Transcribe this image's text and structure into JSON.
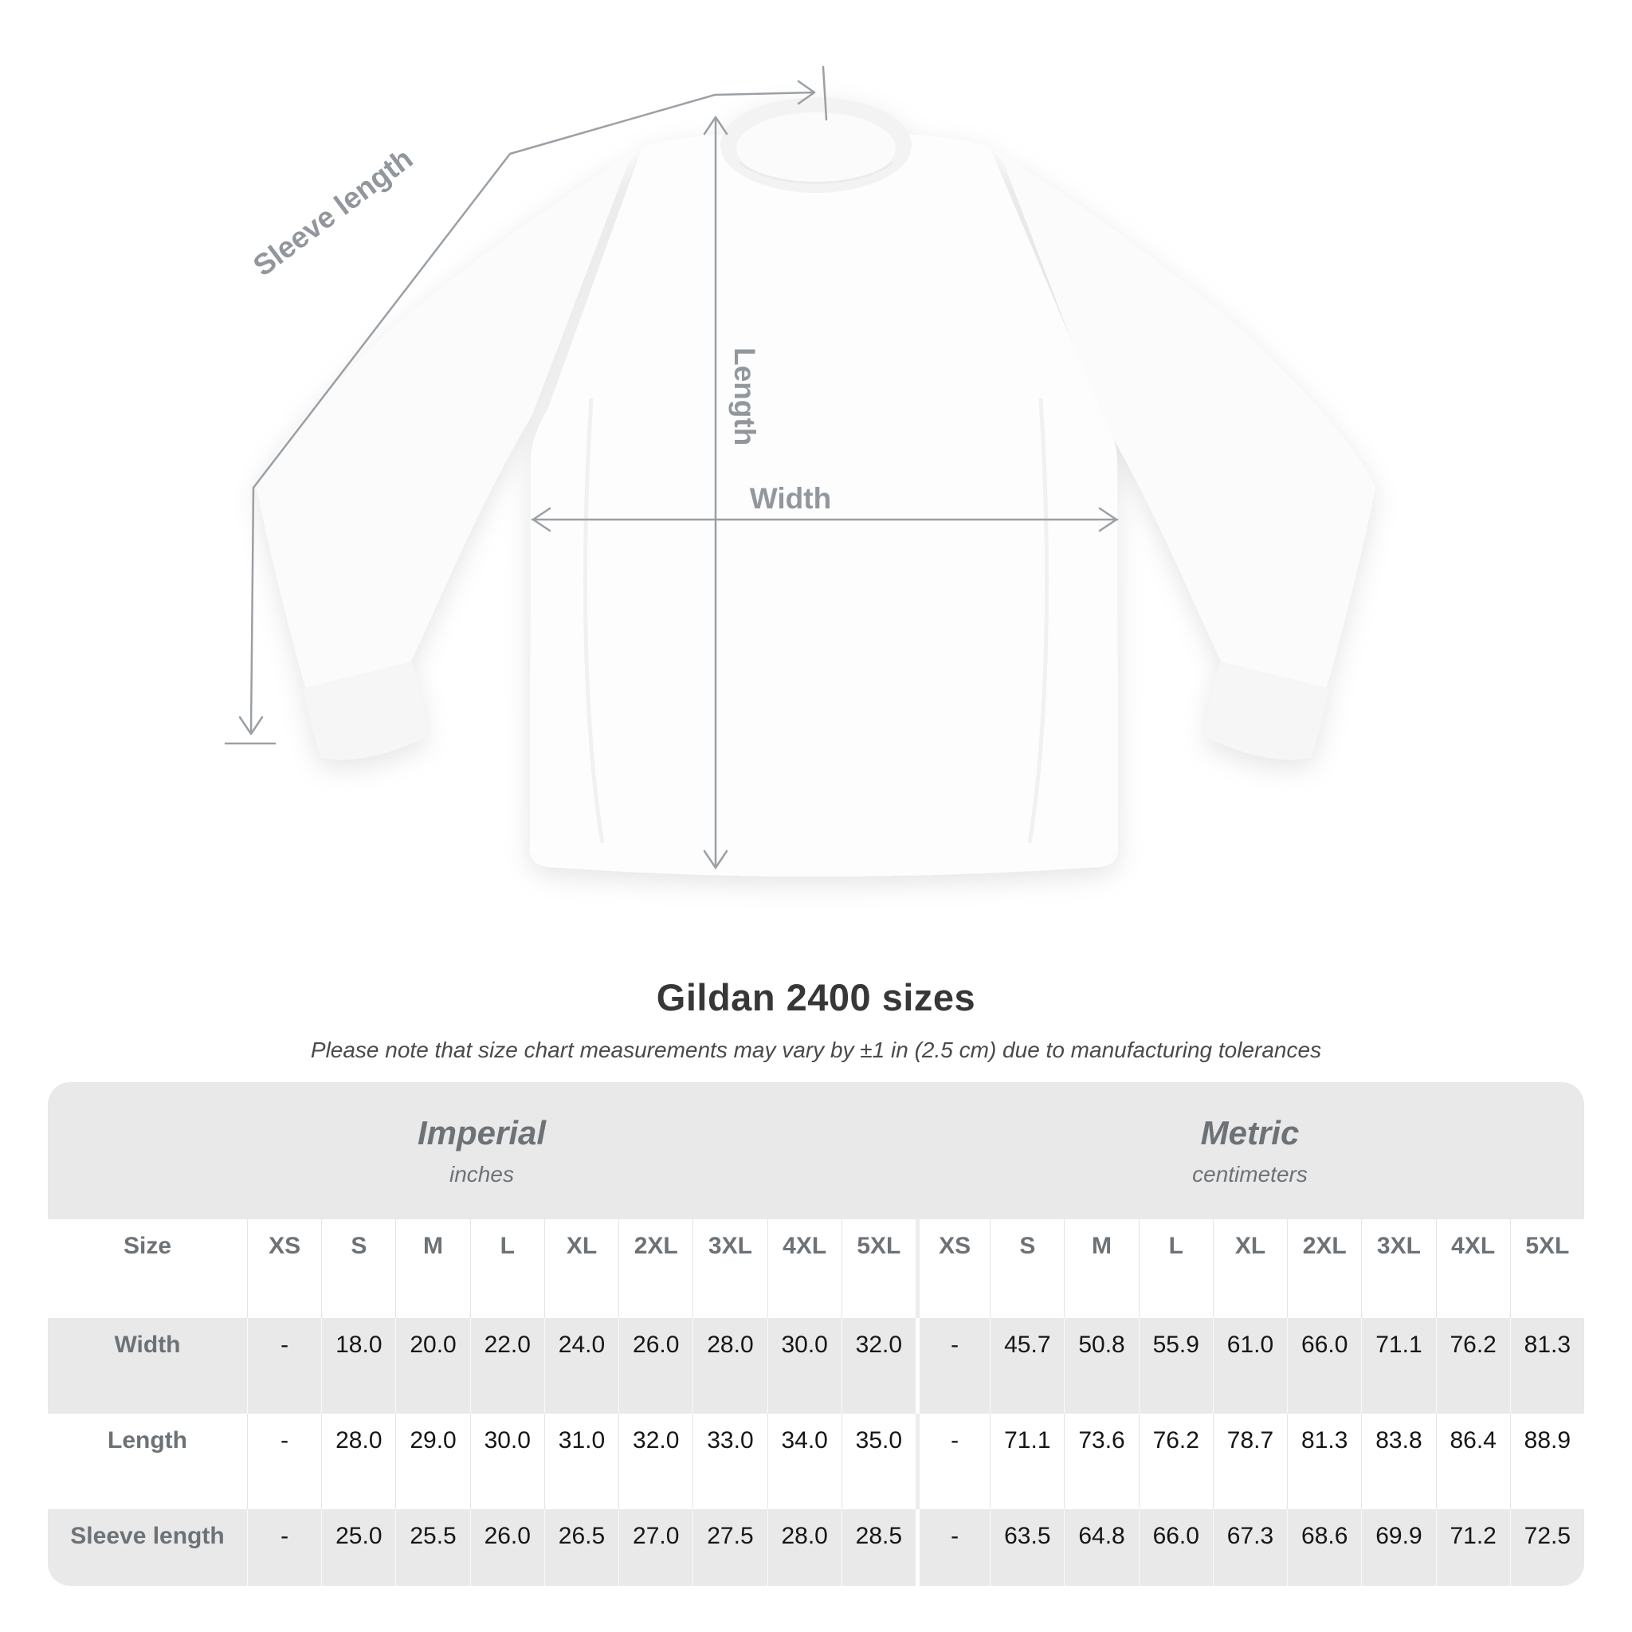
{
  "diagram": {
    "labels": {
      "sleeve_length": "Sleeve length",
      "length": "Length",
      "width": "Width"
    }
  },
  "title": "Gildan 2400 sizes",
  "subtitle": "Please note that size chart measurements may vary by ±1 in (2.5 cm) due to manufacturing tolerances",
  "table": {
    "size_header": "Size",
    "unit_groups": [
      {
        "name": "Imperial",
        "unit": "inches"
      },
      {
        "name": "Metric",
        "unit": "centimeters"
      }
    ],
    "sizes": [
      "XS",
      "S",
      "M",
      "L",
      "XL",
      "2XL",
      "3XL",
      "4XL",
      "5XL"
    ],
    "rows": [
      {
        "label": "Width",
        "imperial": [
          "-",
          "18.0",
          "20.0",
          "22.0",
          "24.0",
          "26.0",
          "28.0",
          "30.0",
          "32.0"
        ],
        "metric": [
          "-",
          "45.7",
          "50.8",
          "55.9",
          "61.0",
          "66.0",
          "71.1",
          "76.2",
          "81.3"
        ]
      },
      {
        "label": "Length",
        "imperial": [
          "-",
          "28.0",
          "29.0",
          "30.0",
          "31.0",
          "32.0",
          "33.0",
          "34.0",
          "35.0"
        ],
        "metric": [
          "-",
          "71.1",
          "73.6",
          "76.2",
          "78.7",
          "81.3",
          "83.8",
          "86.4",
          "88.9"
        ]
      },
      {
        "label": "Sleeve length",
        "imperial": [
          "-",
          "25.0",
          "25.5",
          "26.0",
          "26.5",
          "27.0",
          "27.5",
          "28.0",
          "28.5"
        ],
        "metric": [
          "-",
          "63.5",
          "64.8",
          "66.0",
          "67.3",
          "68.6",
          "69.9",
          "71.2",
          "72.5"
        ]
      }
    ]
  },
  "colors": {
    "stripe_gray": "#e9e9e9",
    "header_text": "#6d7277",
    "value_text": "#161616",
    "measure_gray": "#9aa0a5",
    "title_text": "#373737"
  }
}
